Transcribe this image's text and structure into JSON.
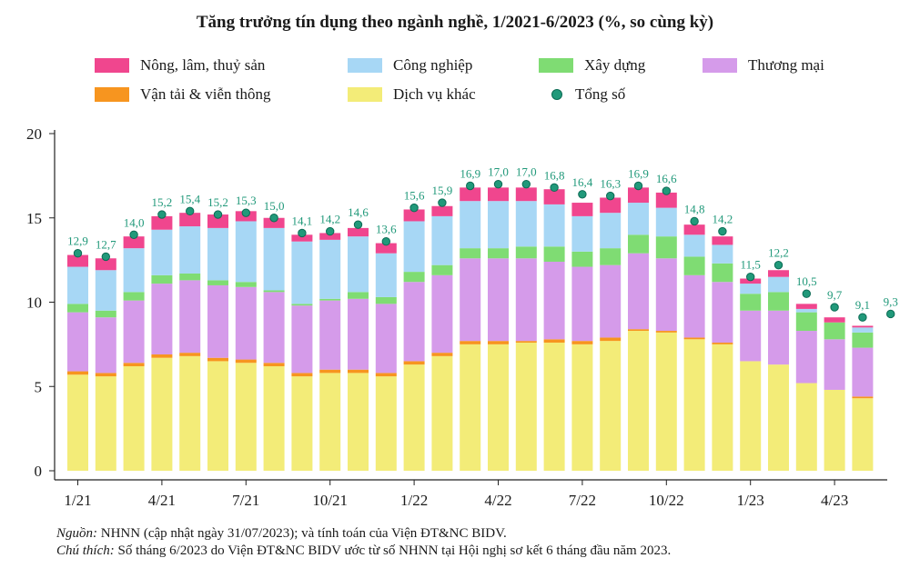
{
  "chart_data": {
    "type": "bar",
    "title": "Tăng trưởng tín dụng theo ngành nghề, 1/2021-6/2023 (%, so cùng kỳ)",
    "ylim": [
      0,
      20
    ],
    "yticks": [
      "0",
      "5",
      "10",
      "15",
      "20"
    ],
    "x_tick_labels": [
      {
        "index": 0,
        "label": "1/21"
      },
      {
        "index": 3,
        "label": "4/21"
      },
      {
        "index": 6,
        "label": "7/21"
      },
      {
        "index": 9,
        "label": "10/21"
      },
      {
        "index": 12,
        "label": "1/22"
      },
      {
        "index": 15,
        "label": "4/22"
      },
      {
        "index": 18,
        "label": "7/22"
      },
      {
        "index": 21,
        "label": "10/22"
      },
      {
        "index": 24,
        "label": "1/23"
      },
      {
        "index": 27,
        "label": "4/23"
      }
    ],
    "series": [
      {
        "name": "Dịch vụ khác",
        "color": "#f3ec78",
        "values": [
          5.7,
          5.6,
          6.2,
          6.7,
          6.8,
          6.5,
          6.4,
          6.2,
          5.6,
          5.8,
          5.8,
          5.6,
          6.3,
          6.8,
          7.5,
          7.5,
          7.6,
          7.6,
          7.5,
          7.7,
          8.3,
          8.2,
          7.8,
          7.5,
          6.5,
          6.3,
          5.2,
          4.8,
          4.3
        ]
      },
      {
        "name": "Vận tải & viễn thông",
        "color": "#f7951f",
        "values": [
          0.2,
          0.2,
          0.2,
          0.2,
          0.2,
          0.2,
          0.2,
          0.2,
          0.2,
          0.2,
          0.2,
          0.2,
          0.2,
          0.2,
          0.2,
          0.2,
          0.1,
          0.2,
          0.2,
          0.2,
          0.1,
          0.1,
          0.1,
          0.1,
          0.0,
          0.0,
          0.0,
          0.0,
          0.1
        ]
      },
      {
        "name": "Thương mại",
        "color": "#d59bea",
        "values": [
          3.5,
          3.3,
          3.7,
          4.2,
          4.3,
          4.3,
          4.3,
          4.2,
          4.0,
          4.1,
          4.2,
          4.1,
          4.7,
          4.6,
          4.9,
          4.9,
          4.9,
          4.6,
          4.4,
          4.3,
          4.5,
          4.3,
          3.7,
          3.6,
          3.0,
          3.2,
          3.1,
          3.0,
          2.9
        ]
      },
      {
        "name": "Xây dựng",
        "color": "#7fdc73",
        "values": [
          0.5,
          0.4,
          0.5,
          0.5,
          0.4,
          0.3,
          0.3,
          0.1,
          0.1,
          0.1,
          0.4,
          0.4,
          0.6,
          0.6,
          0.6,
          0.6,
          0.7,
          0.9,
          0.9,
          1.0,
          1.1,
          1.3,
          1.1,
          1.1,
          1.0,
          1.1,
          1.1,
          1.0,
          0.9
        ]
      },
      {
        "name": "Công nghiệp",
        "color": "#a7d7f5",
        "values": [
          2.2,
          2.4,
          2.6,
          2.7,
          2.8,
          3.1,
          3.6,
          3.7,
          3.7,
          3.5,
          3.3,
          2.6,
          3.0,
          2.9,
          2.8,
          2.8,
          2.7,
          2.5,
          2.1,
          2.1,
          1.9,
          1.7,
          1.3,
          1.1,
          0.6,
          0.9,
          0.2,
          0.0,
          0.3
        ]
      },
      {
        "name": "Nông, lâm, thuỷ sản",
        "color": "#f0468e",
        "values": [
          0.7,
          0.7,
          0.7,
          0.8,
          0.8,
          0.8,
          0.6,
          0.6,
          0.4,
          0.4,
          0.5,
          0.6,
          0.7,
          0.6,
          0.8,
          0.8,
          0.8,
          0.9,
          0.8,
          0.9,
          0.9,
          0.9,
          0.6,
          0.5,
          0.3,
          0.4,
          0.3,
          0.3,
          0.1
        ]
      }
    ],
    "total": {
      "name": "Tổng số",
      "color": "#21997a",
      "values": [
        12.9,
        12.7,
        14.0,
        15.2,
        15.4,
        15.2,
        15.3,
        15.0,
        14.1,
        14.2,
        14.6,
        13.6,
        15.6,
        15.9,
        16.9,
        17.0,
        17.0,
        16.8,
        16.4,
        16.3,
        16.9,
        16.6,
        14.8,
        14.2,
        11.5,
        12.2,
        10.5,
        9.7,
        9.1,
        9.3
      ],
      "labels": [
        "12,9",
        "12,7",
        "14,0",
        "15,2",
        "15,4",
        "15,2",
        "15,3",
        "15,0",
        "14,1",
        "14,2",
        "14,6",
        "13,6",
        "15,6",
        "15,9",
        "16,9",
        "17,0",
        "17,0",
        "16,8",
        "16,4",
        "16,3",
        "16,9",
        "16,6",
        "14,8",
        "14,2",
        "11,5",
        "12,2",
        "10,5",
        "9,7",
        "9,1",
        "9,3"
      ]
    },
    "legend": {
      "placement": "top",
      "items": [
        {
          "label": "Nông, lâm, thuỷ sản",
          "color": "#f0468e",
          "marker": "box"
        },
        {
          "label": "Công nghiệp",
          "color": "#a7d7f5",
          "marker": "box"
        },
        {
          "label": "Xây dựng",
          "color": "#7fdc73",
          "marker": "box"
        },
        {
          "label": "Thương mại",
          "color": "#d59bea",
          "marker": "box"
        },
        {
          "label": "Vận tải & viễn thông",
          "color": "#f7951f",
          "marker": "box"
        },
        {
          "label": "Dịch vụ khác",
          "color": "#f3ec78",
          "marker": "box"
        },
        {
          "label": "Tổng số",
          "color": "#21997a",
          "marker": "dot"
        }
      ]
    },
    "grid": false
  },
  "notes": {
    "source_label": "Nguồn:",
    "source_text": " NHNN (cập nhật ngày 31/07/2023); và tính toán của Viện ĐT&NC BIDV.",
    "note_label": "Chú thích:",
    "note_text": " Số tháng 6/2023 do Viện ĐT&NC BIDV ước từ số NHNN tại Hội nghị sơ kết 6 tháng đầu năm 2023."
  }
}
